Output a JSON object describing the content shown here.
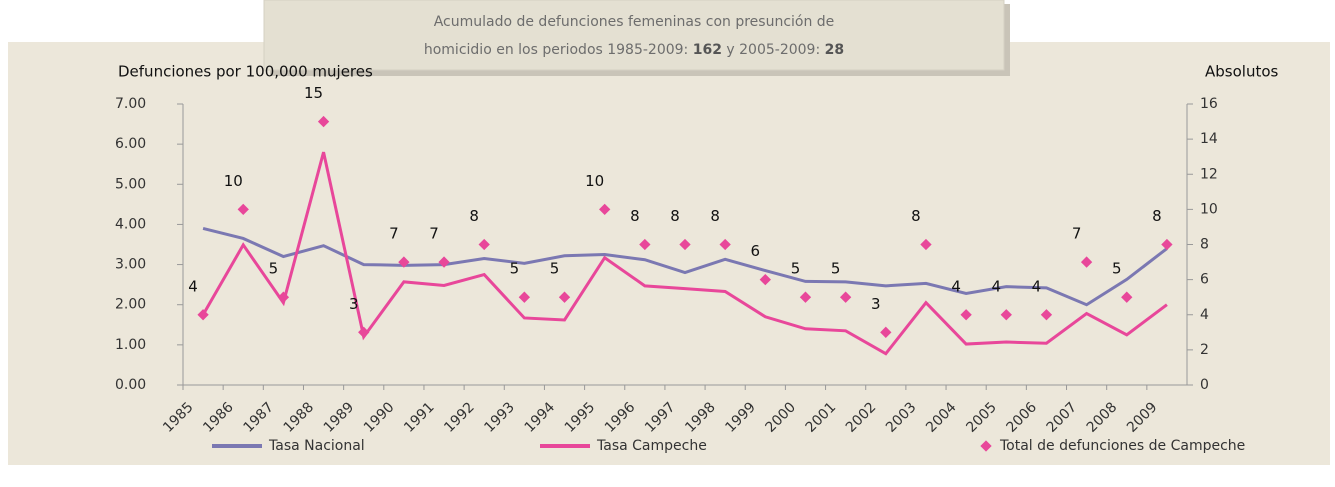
{
  "chart_data": {
    "type": "line",
    "annotation": {
      "line1": "Acumulado de defunciones femeninas con presunción de",
      "line2": "homicidio en los periodos 1985-2009: ",
      "total1": "162",
      "mid": " y 2005-2009: ",
      "total2": "28"
    },
    "y_label": "Defunciones por 100,000 mujeres",
    "y2_label": "Absolutos",
    "categories": [
      "1985",
      "1986",
      "1987",
      "1988",
      "1989",
      "1990",
      "1991",
      "1992",
      "1993",
      "1994",
      "1995",
      "1996",
      "1997",
      "1998",
      "1999",
      "2000",
      "2001",
      "2002",
      "2003",
      "2004",
      "2005",
      "2006",
      "2007",
      "2008",
      "2009"
    ],
    "series": [
      {
        "name": "Tasa  Nacional",
        "color": "#7b78b2",
        "kind": "line",
        "values": [
          3.9,
          3.65,
          3.2,
          3.47,
          3.0,
          2.98,
          3.0,
          3.15,
          3.03,
          3.22,
          3.25,
          3.12,
          2.8,
          3.13,
          2.85,
          2.58,
          2.57,
          2.47,
          2.53,
          2.28,
          2.45,
          2.42,
          2.0,
          2.63,
          3.4
        ]
      },
      {
        "name": "Tasa  Campeche",
        "color": "#e8479a",
        "kind": "line",
        "values": [
          1.75,
          3.49,
          2.05,
          5.8,
          1.2,
          2.57,
          2.48,
          2.75,
          1.67,
          1.62,
          3.17,
          2.47,
          2.4,
          2.33,
          1.7,
          1.4,
          1.35,
          0.78,
          2.05,
          1.02,
          1.07,
          1.04,
          1.78,
          1.25,
          2.0
        ]
      },
      {
        "name": "Total de defunciones de Campeche",
        "color": "#e8479a",
        "kind": "marker",
        "axis": "y2",
        "values": [
          4,
          10,
          5,
          15,
          3,
          7,
          7,
          8,
          5,
          5,
          10,
          8,
          8,
          8,
          6,
          5,
          5,
          3,
          8,
          4,
          4,
          4,
          7,
          5,
          8
        ]
      }
    ],
    "ylim": [
      0,
      7
    ],
    "yticks": [
      {
        "value": 0,
        "label": "0.00"
      },
      {
        "value": 1,
        "label": "1.00"
      },
      {
        "value": 2,
        "label": "2.00"
      },
      {
        "value": 3,
        "label": "3.00"
      },
      {
        "value": 4,
        "label": "4.00"
      },
      {
        "value": 5,
        "label": "5.00"
      },
      {
        "value": 6,
        "label": "6.00"
      },
      {
        "value": 7,
        "label": "7.00"
      }
    ],
    "y2lim": [
      0,
      16
    ],
    "y2ticks": [
      0,
      2,
      4,
      6,
      8,
      10,
      12,
      14,
      16
    ],
    "grid": false,
    "legend": "bottom"
  }
}
